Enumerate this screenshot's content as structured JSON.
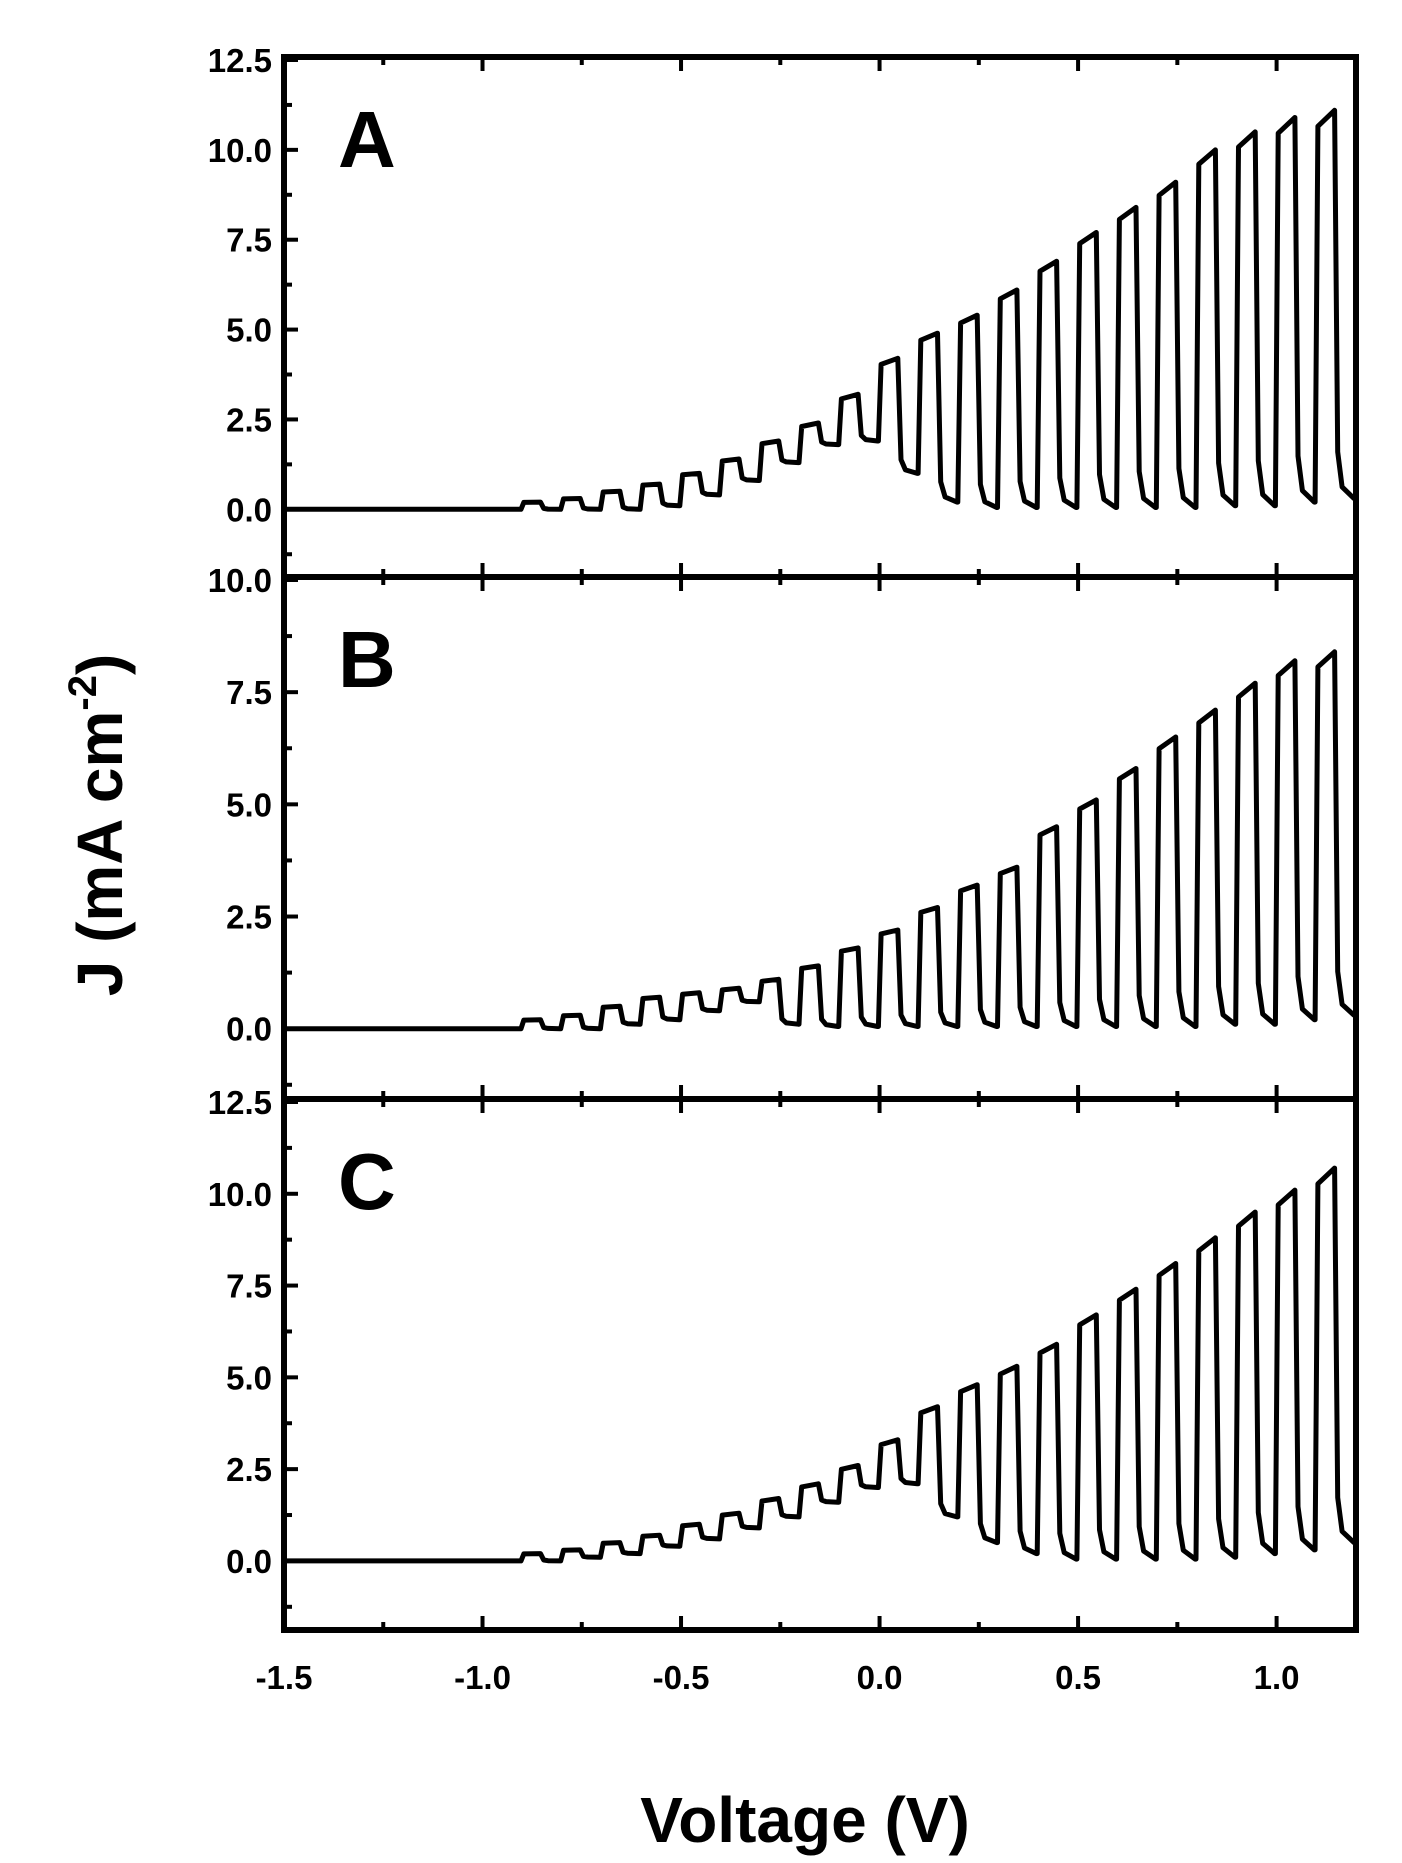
{
  "chart_data": {
    "type": "line",
    "xlabel": "Voltage (V)",
    "ylabel_main": "J (mA cm",
    "ylabel_sup": "-2",
    "ylabel_close": ")",
    "xlim": [
      -1.5,
      1.2
    ],
    "x_ticks": [
      -1.5,
      -1.0,
      -0.5,
      0.0,
      0.5,
      1.0
    ],
    "x_tick_labels": [
      "-1.5",
      "-1.0",
      "-0.5",
      "0.0",
      "0.5",
      "1.0"
    ],
    "chopped_light": true,
    "chop_period_V": 0.1,
    "panels": [
      {
        "label": "A",
        "ylim": [
          -1.8,
          12.5
        ],
        "y_ticks": [
          0.0,
          2.5,
          5.0,
          7.5,
          10.0,
          12.5
        ],
        "y_tick_labels": [
          "0.0",
          "2.5",
          "5.0",
          "7.5",
          "10.0",
          "12.5"
        ],
        "light_on_x": [
          -0.9,
          -0.8,
          -0.7,
          -0.6,
          -0.5,
          -0.4,
          -0.3,
          -0.2,
          -0.1,
          0.0,
          0.1,
          0.2,
          0.3,
          0.4,
          0.5,
          0.6,
          0.7,
          0.8,
          0.9,
          1.0,
          1.1
        ],
        "light_current": [
          0.2,
          0.3,
          0.5,
          0.7,
          1.0,
          1.4,
          1.9,
          2.4,
          3.2,
          4.2,
          4.9,
          5.4,
          6.1,
          6.9,
          7.7,
          8.4,
          9.1,
          10.0,
          10.5,
          10.9,
          11.1
        ],
        "dark_current": [
          0.0,
          0.0,
          0.0,
          0.1,
          0.4,
          0.8,
          1.3,
          1.8,
          1.9,
          1.0,
          0.2,
          0.05,
          0.05,
          0.05,
          0.05,
          0.05,
          0.05,
          0.1,
          0.1,
          0.2,
          0.3
        ]
      },
      {
        "label": "B",
        "ylim": [
          -1.5,
          10.0
        ],
        "y_ticks": [
          0.0,
          2.5,
          5.0,
          7.5,
          10.0
        ],
        "y_tick_labels": [
          "0.0",
          "2.5",
          "5.0",
          "7.5",
          "10.0"
        ],
        "light_on_x": [
          -0.9,
          -0.8,
          -0.7,
          -0.6,
          -0.5,
          -0.4,
          -0.3,
          -0.2,
          -0.1,
          0.0,
          0.1,
          0.2,
          0.3,
          0.4,
          0.5,
          0.6,
          0.7,
          0.8,
          0.9,
          1.0,
          1.1
        ],
        "light_current": [
          0.2,
          0.3,
          0.5,
          0.7,
          0.8,
          0.9,
          1.1,
          1.4,
          1.8,
          2.2,
          2.7,
          3.2,
          3.6,
          4.5,
          5.1,
          5.8,
          6.5,
          7.1,
          7.7,
          8.2,
          8.4
        ],
        "dark_current": [
          0.0,
          0.0,
          0.1,
          0.2,
          0.4,
          0.6,
          0.1,
          0.05,
          0.05,
          0.05,
          0.05,
          0.05,
          0.05,
          0.05,
          0.05,
          0.05,
          0.05,
          0.1,
          0.1,
          0.2,
          0.3
        ]
      },
      {
        "label": "C",
        "ylim": [
          -1.8,
          12.5
        ],
        "y_ticks": [
          0.0,
          2.5,
          5.0,
          7.5,
          10.0,
          12.5
        ],
        "y_tick_labels": [
          "0.0",
          "2.5",
          "5.0",
          "7.5",
          "10.0",
          "12.5"
        ],
        "light_on_x": [
          -0.9,
          -0.8,
          -0.7,
          -0.6,
          -0.5,
          -0.4,
          -0.3,
          -0.2,
          -0.1,
          0.0,
          0.1,
          0.2,
          0.3,
          0.4,
          0.5,
          0.6,
          0.7,
          0.8,
          0.9,
          1.0,
          1.1
        ],
        "light_current": [
          0.2,
          0.3,
          0.5,
          0.7,
          1.0,
          1.3,
          1.7,
          2.1,
          2.6,
          3.3,
          4.2,
          4.8,
          5.3,
          5.9,
          6.7,
          7.4,
          8.1,
          8.8,
          9.5,
          10.1,
          10.7
        ],
        "dark_current": [
          0.0,
          0.1,
          0.2,
          0.4,
          0.6,
          0.9,
          1.2,
          1.6,
          2.0,
          2.1,
          1.2,
          0.5,
          0.2,
          0.05,
          0.05,
          0.05,
          0.05,
          0.1,
          0.2,
          0.3,
          0.5
        ]
      }
    ]
  }
}
